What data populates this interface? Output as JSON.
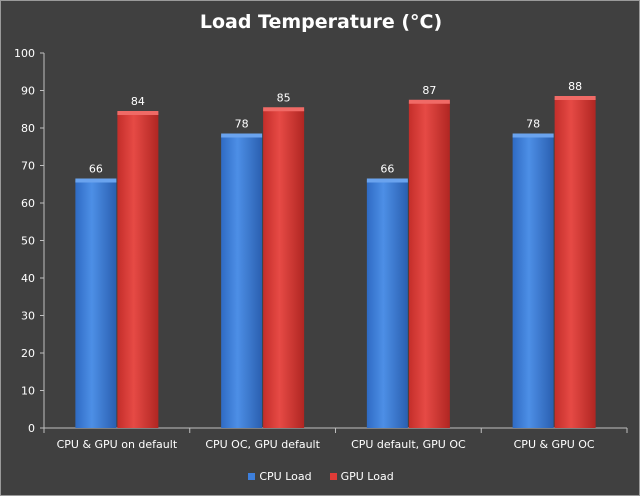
{
  "colors": {
    "background": "#404040",
    "cpu_load": "#3d7fdc",
    "gpu_load": "#de3b37",
    "text": "#ffffff",
    "axis": "#bfbfbf"
  },
  "chart_data": {
    "type": "bar",
    "title": "Load Temperature (°C)",
    "xlabel": "",
    "ylabel": "",
    "ylim": [
      0,
      100
    ],
    "yticks": [
      0,
      10,
      20,
      30,
      40,
      50,
      60,
      70,
      80,
      90,
      100
    ],
    "grid": false,
    "legend_position": "bottom",
    "categories": [
      "CPU & GPU on default",
      "CPU OC, GPU default",
      "CPU default, GPU OC",
      "CPU & GPU OC"
    ],
    "series": [
      {
        "name": "CPU Load",
        "values": [
          66,
          78,
          66,
          78
        ]
      },
      {
        "name": "GPU Load",
        "values": [
          84,
          85,
          87,
          88
        ]
      }
    ]
  }
}
